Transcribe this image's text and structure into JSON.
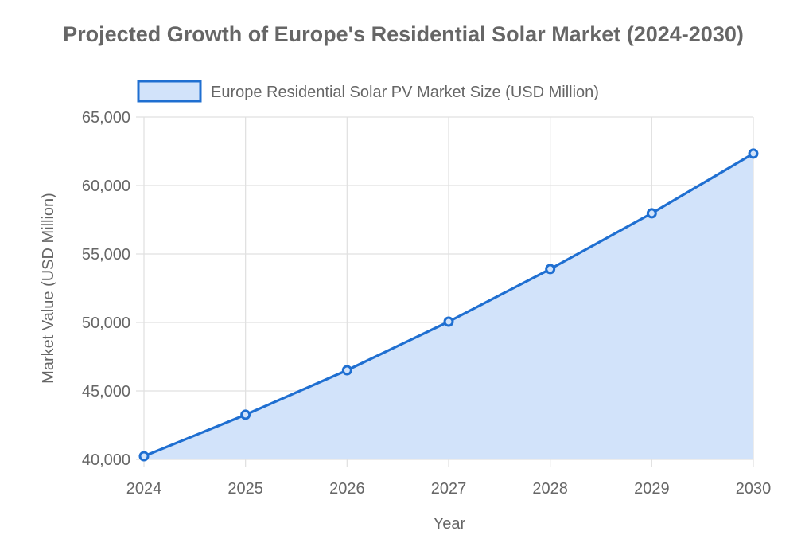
{
  "chart_data": {
    "type": "area",
    "title": "Projected Growth of Europe's Residential Solar Market (2024-2030)",
    "xlabel": "Year",
    "ylabel": "Market Value (USD Million)",
    "categories": [
      "2024",
      "2025",
      "2026",
      "2027",
      "2028",
      "2029",
      "2030"
    ],
    "series": [
      {
        "name": "Europe Residential Solar PV Market Size (USD Million)",
        "values": [
          40230,
          43260,
          46510,
          50060,
          53900,
          57970,
          62330
        ],
        "line_color": "#1f6fd1",
        "fill_color": "#d2e3fa"
      }
    ],
    "ylim": [
      40000,
      65000
    ],
    "yticks": [
      40000,
      45000,
      50000,
      55000,
      60000,
      65000
    ],
    "ytick_labels": [
      "40,000",
      "45,000",
      "50,000",
      "55,000",
      "60,000",
      "65,000"
    ],
    "grid": true,
    "legend_position": "top-center"
  }
}
